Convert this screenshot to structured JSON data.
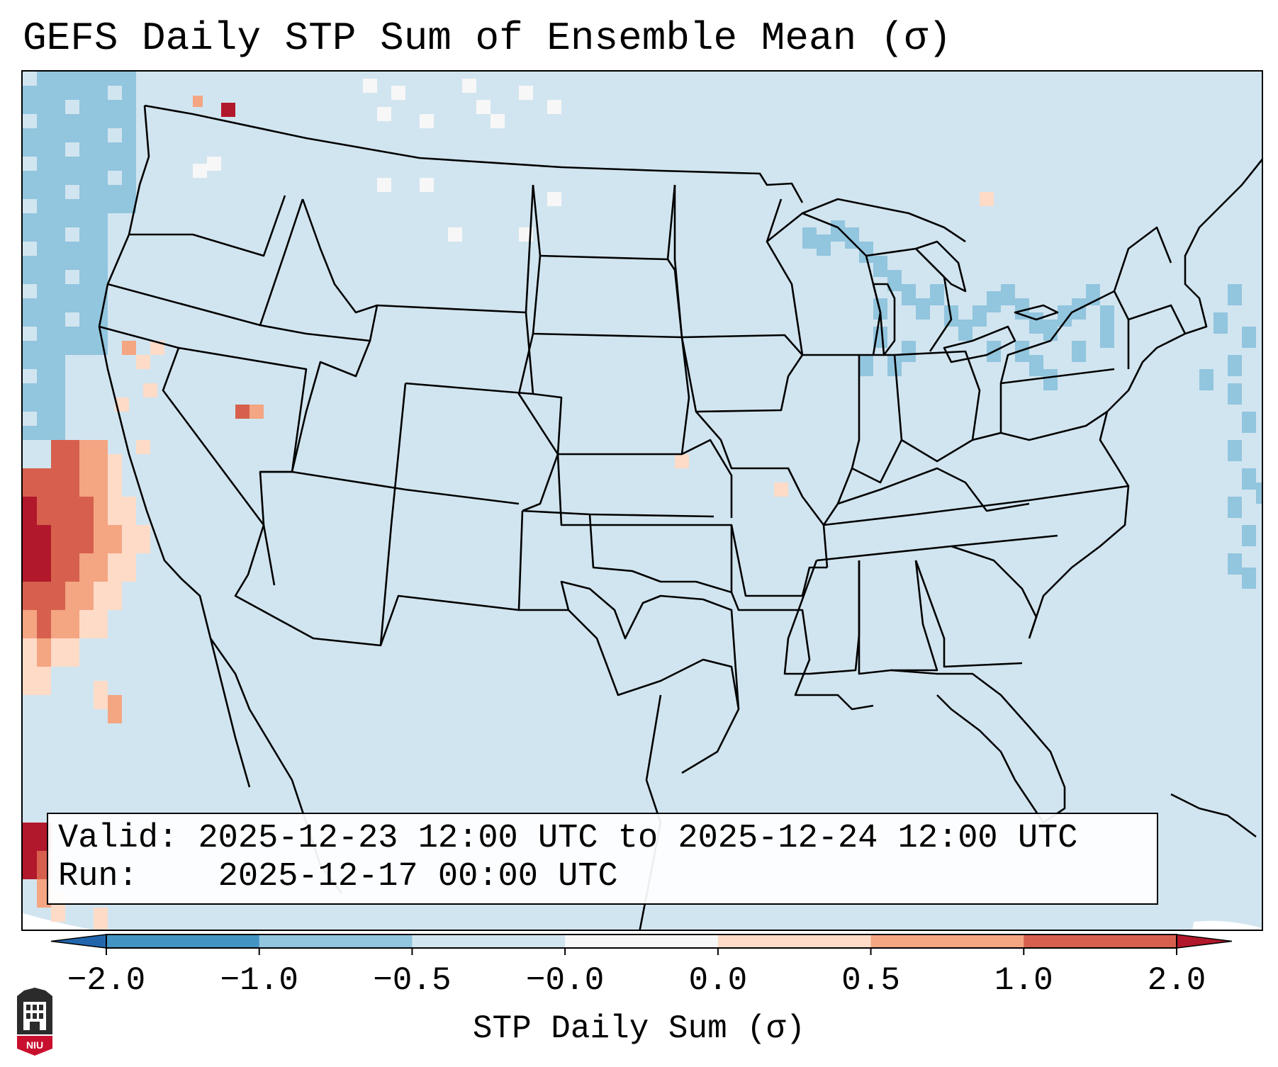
{
  "title": "GEFS Daily STP Sum of Ensemble Mean (σ)",
  "info": {
    "valid_label": "Valid:",
    "valid_value": "2025-12-23 12:00 UTC to 2025-12-24 12:00 UTC",
    "run_label": "Run:",
    "run_value": "2025-12-17 00:00 UTC"
  },
  "colorbar": {
    "label": "STP Daily Sum (σ)",
    "ticks": [
      "−2.0",
      "−1.0",
      "−0.5",
      "−0.0",
      "0.0",
      "0.5",
      "1.0",
      "2.0"
    ],
    "bins": [
      {
        "range": "-2.0 to -1.0",
        "color": "#4393c3"
      },
      {
        "range": "-1.0 to -0.5",
        "color": "#92c5de"
      },
      {
        "range": "-0.5 to -0.0",
        "color": "#d1e5f0"
      },
      {
        "range": "-0.0 to 0.0",
        "color": "#f7f7f7"
      },
      {
        "range": "0.0 to 0.5",
        "color": "#fddbc7"
      },
      {
        "range": "0.5 to 1.0",
        "color": "#f4a582"
      },
      {
        "range": "1.0 to 2.0",
        "color": "#d6604d"
      }
    ],
    "under_color": "#2166ac",
    "over_color": "#b2182b"
  },
  "map": {
    "background_color": "#d1e5f0",
    "border_color": "#000000",
    "coverage_regions": [
      {
        "name": "pacific-coast-negative",
        "color": "#92c5de"
      },
      {
        "name": "great-lakes-negative",
        "color": "#92c5de"
      },
      {
        "name": "atlantic-negative",
        "color": "#92c5de"
      },
      {
        "name": "california-offshore-positive",
        "color": "#d6604d"
      }
    ]
  },
  "logo": {
    "text": "NIU",
    "color": "#c8102e"
  }
}
